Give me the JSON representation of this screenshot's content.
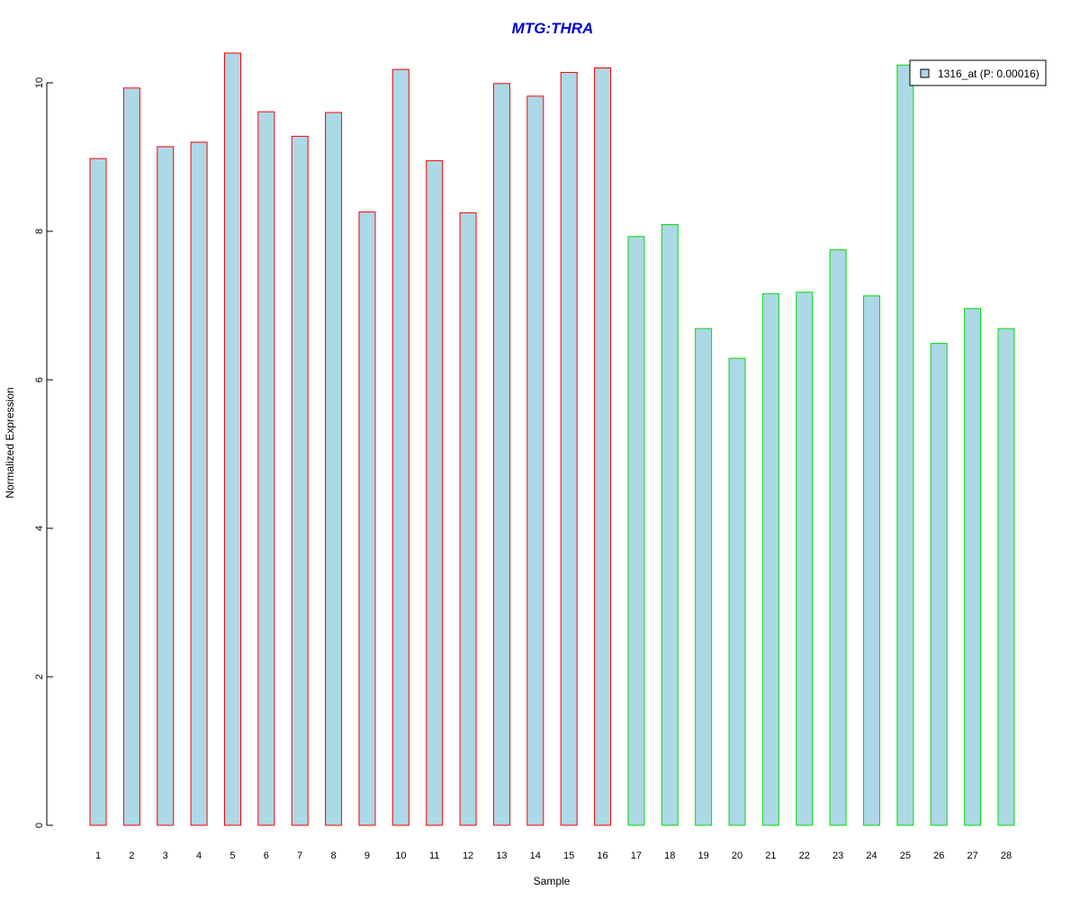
{
  "chart_data": {
    "type": "bar",
    "title": "MTG:THRA",
    "xlabel": "Sample",
    "ylabel": "Normalized Expression",
    "categories": [
      "1",
      "2",
      "3",
      "4",
      "5",
      "6",
      "7",
      "8",
      "9",
      "10",
      "11",
      "12",
      "13",
      "14",
      "15",
      "16",
      "17",
      "18",
      "19",
      "20",
      "21",
      "22",
      "23",
      "24",
      "25",
      "26",
      "27",
      "28"
    ],
    "series": [
      {
        "name": "1316_at (P: 0.00016)",
        "values": [
          8.98,
          9.93,
          9.14,
          9.2,
          10.4,
          9.61,
          9.28,
          9.6,
          8.26,
          10.18,
          8.95,
          8.25,
          9.99,
          9.82,
          10.14,
          10.2,
          7.93,
          8.09,
          6.69,
          6.29,
          7.16,
          7.18,
          7.75,
          7.13,
          10.24,
          6.49,
          6.96,
          6.69
        ]
      }
    ],
    "group_border_colors": [
      "#ff0000",
      "#ff0000",
      "#ff0000",
      "#ff0000",
      "#ff0000",
      "#ff0000",
      "#ff0000",
      "#ff0000",
      "#ff0000",
      "#ff0000",
      "#ff0000",
      "#ff0000",
      "#ff0000",
      "#ff0000",
      "#ff0000",
      "#ff0000",
      "#00dd00",
      "#00dd00",
      "#00dd00",
      "#00dd00",
      "#00dd00",
      "#00dd00",
      "#00dd00",
      "#00dd00",
      "#00dd00",
      "#00dd00",
      "#00dd00",
      "#00dd00"
    ],
    "bar_fill": "#add8e6",
    "title_color": "#0000cc",
    "yticks": [
      0,
      2,
      4,
      6,
      8,
      10
    ],
    "ylim": [
      0,
      10.4
    ],
    "grid": false,
    "legend_position": "top-right"
  }
}
